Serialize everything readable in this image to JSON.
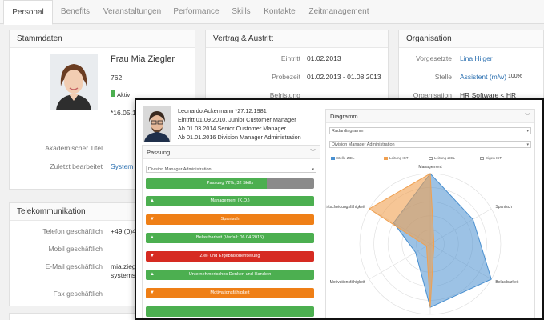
{
  "tabs": [
    "Personal",
    "Benefits",
    "Veranstaltungen",
    "Performance",
    "Skills",
    "Kontakte",
    "Zeitmanagement"
  ],
  "stammdaten": {
    "title": "Stammdaten",
    "name": "Frau Mia Ziegler",
    "number": "762",
    "status": "Aktiv",
    "date_partial": "*16.05.1",
    "akademischer_titel_label": "Akademischer Titel",
    "zuletzt_label": "Zuletzt bearbeitet",
    "zuletzt_value": "System"
  },
  "vertrag": {
    "title": "Vertrag & Austritt",
    "eintritt_label": "Eintritt",
    "eintritt_value": "01.02.2013",
    "probezeit_label": "Probezeit",
    "probezeit_value": "01.02.2013 - 01.08.2013",
    "befristung_label": "Befristung"
  },
  "organisation": {
    "title": "Organisation",
    "vorgesetzte_label": "Vorgesetzte",
    "vorgesetzte_value": "Lina Hilger",
    "stelle_label": "Stelle",
    "stelle_value": "Assistent (m/w)",
    "stelle_pct": "100%",
    "organisation_label": "Organisation",
    "organisation_value": "HR Software < HR"
  },
  "telekom": {
    "title": "Telekommunikation",
    "tel_label": "Telefon geschäftlich",
    "tel_value": "+49 (0)4",
    "mobil_label": "Mobil geschäftlich",
    "email_label": "E-Mail geschäftlich",
    "email_value": "mia.zieg",
    "email_value2": "systems.",
    "fax_label": "Fax geschäftlich"
  },
  "overlay": {
    "header_lines": [
      "Leonardo Ackermann *27.12.1981",
      "Eintritt 01.09.2010, Junior Customer Manager",
      "Ab 01.03.2014 Senior Customer Manager",
      "Ab 01.01.2016 Division Manager Administration"
    ],
    "passung": {
      "title": "Passung",
      "select_value": "Division Manager Administration",
      "progress_label": "Passung 72%, 32 Skills",
      "progress_value": 0.72,
      "bars": [
        {
          "label": "Management (K.O.)",
          "color": "green",
          "icon": "thumbs-up"
        },
        {
          "label": "Spanisch",
          "color": "orange",
          "icon": "thumbs-down"
        },
        {
          "label": "Belastbarkeit (Verfall: 06.04.2015)",
          "color": "green",
          "icon": "thumbs-up"
        },
        {
          "label": "Ziel- und Ergebnisorientierung",
          "color": "red",
          "icon": "thumbs-down"
        },
        {
          "label": "Unternehmerisches Denken und Handeln",
          "color": "green",
          "icon": "thumbs-up"
        },
        {
          "label": "Motivationsfähigkeit",
          "color": "orange",
          "icon": "thumbs-down"
        }
      ]
    },
    "diagramm": {
      "title": "Diagramm",
      "select1": "Radardiagramm",
      "select2": "Division Manager Administration",
      "legend": [
        "Stelle ZIEL",
        "Leitung IST",
        "Leitung ZIEL",
        "Eigen IST"
      ]
    }
  },
  "chart_data": {
    "type": "radar",
    "axes": [
      "Management",
      "Spanisch",
      "Belastbarkeit",
      "Ziel- und",
      "Motivationsfähigkeit",
      "Entscheidungsfähigkeit"
    ],
    "series": [
      {
        "name": "Stelle ZIEL",
        "color": "#4a90d0",
        "values": [
          5,
          3.5,
          5,
          4.5,
          1.2,
          3
        ]
      },
      {
        "name": "Leitung IST",
        "color": "#f0a050",
        "values": [
          5,
          0.3,
          0.3,
          4.5,
          0.3,
          5
        ]
      }
    ],
    "max": 5
  },
  "colors": {
    "green": "#4caf50",
    "orange": "#ef7f16",
    "red": "#d62b22",
    "link": "#2a6fb0"
  }
}
